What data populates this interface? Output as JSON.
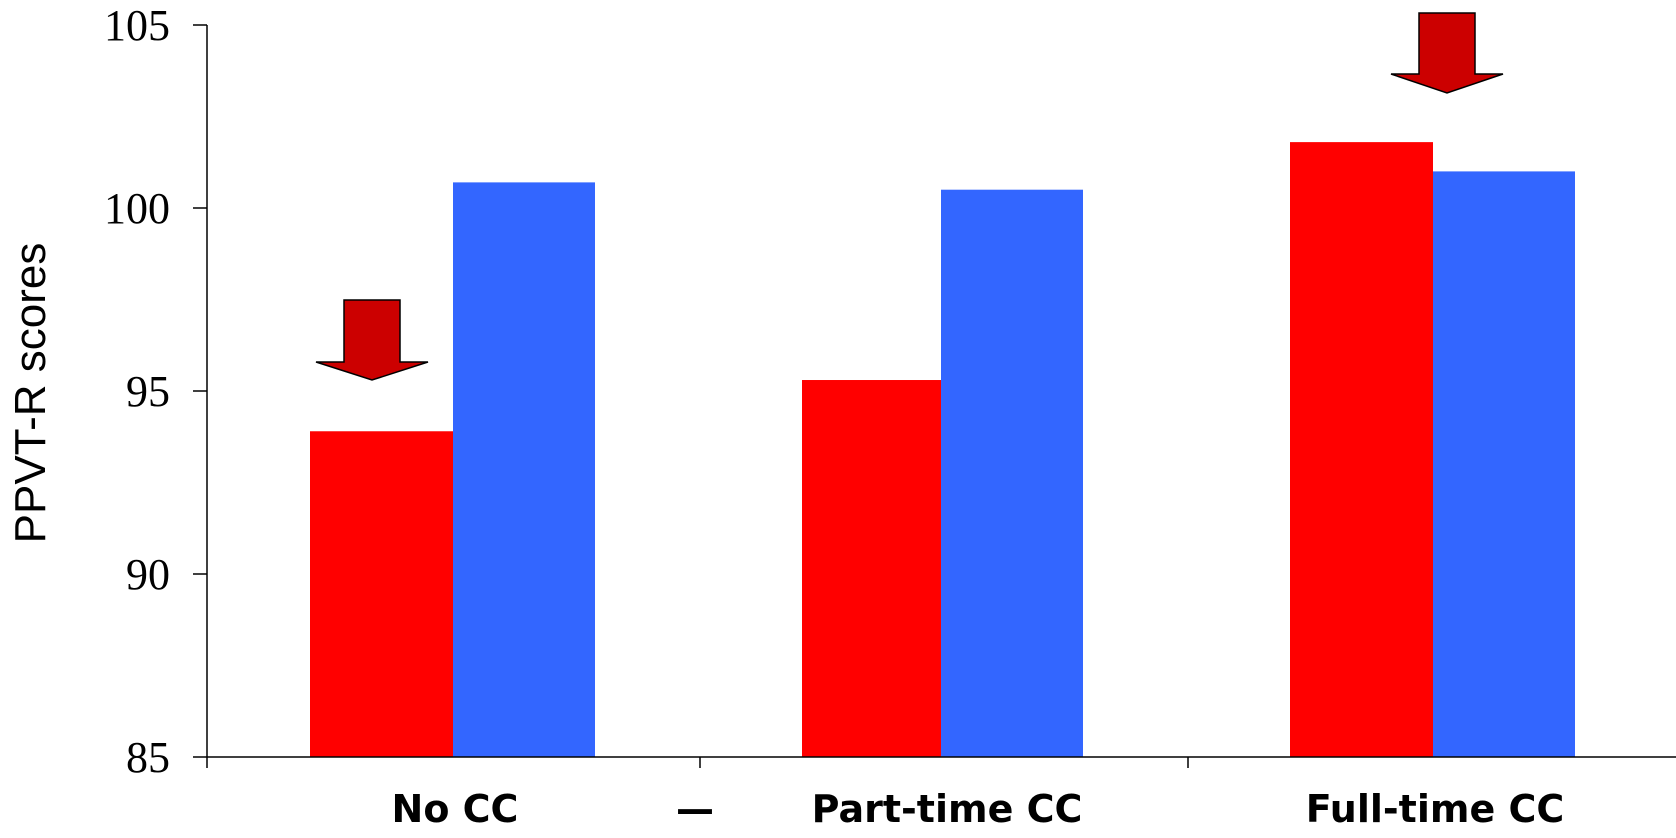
{
  "chart_data": {
    "type": "bar",
    "title": "",
    "xlabel": "",
    "ylabel": "PPVT-R scores",
    "ylim": [
      85,
      105
    ],
    "yticks": [
      85,
      90,
      95,
      100,
      105
    ],
    "grid": false,
    "legend": "none",
    "categories": [
      "No CC",
      "Part-time CC",
      "Full-time CC"
    ],
    "separator_glyph": "—",
    "series": [
      {
        "color": "#ff0000",
        "values": [
          93.9,
          95.3,
          101.8
        ]
      },
      {
        "color": "#3366ff",
        "values": [
          100.7,
          100.5,
          101.0
        ]
      }
    ],
    "annotations": [
      {
        "type": "down-arrow",
        "category": "No CC",
        "color": "#cc0000"
      },
      {
        "type": "down-arrow",
        "category": "Full-time CC",
        "color": "#cc0000"
      }
    ]
  }
}
